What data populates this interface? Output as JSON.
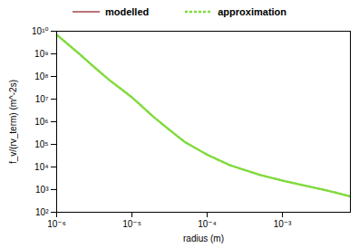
{
  "chart_data": {
    "type": "line",
    "log": true,
    "grid": false,
    "legend": "top",
    "xlabel": "radius (m)",
    "ylabel": "f_v/(rv_term) (m^-2s)",
    "x": [
      1e-06,
      2e-06,
      3e-06,
      5e-06,
      1e-05,
      2e-05,
      3e-05,
      5e-05,
      0.0001,
      0.0002,
      0.0005,
      0.001,
      0.002,
      0.004,
      0.008
    ],
    "series": [
      {
        "name": "modelled",
        "color": "#8b1a1a",
        "line_style": "solid",
        "values": [
          7000000000.0,
          1000000000.0,
          300000000.0,
          70000000.0,
          12000000.0,
          1500000.0,
          500000.0,
          130000.0,
          35000.0,
          12000.0,
          4500.0,
          2500.0,
          1500.0,
          900.0,
          500.0
        ]
      },
      {
        "name": "approximation",
        "color": "#7fdc3c",
        "line_style": "dashed",
        "values": [
          7000000000.0,
          1000000000.0,
          300000000.0,
          70000000.0,
          12000000.0,
          1500000.0,
          500000.0,
          130000.0,
          35000.0,
          12000.0,
          4500.0,
          2500.0,
          1500.0,
          900.0,
          500.0
        ]
      }
    ],
    "xlim": [
      1e-06,
      0.008
    ],
    "ylim": [
      100.0,
      10000000000.0
    ],
    "xticks": [
      {
        "value": 1e-06,
        "label": "10⁻⁶"
      },
      {
        "value": 1e-05,
        "label": "10⁻⁵"
      },
      {
        "value": 0.0001,
        "label": "10⁻⁴"
      },
      {
        "value": 0.001,
        "label": "10⁻³"
      }
    ],
    "yticks": [
      {
        "value": 100.0,
        "label": "10²"
      },
      {
        "value": 1000.0,
        "label": "10³"
      },
      {
        "value": 10000.0,
        "label": "10⁴"
      },
      {
        "value": 100000.0,
        "label": "10⁵"
      },
      {
        "value": 1000000.0,
        "label": "10⁶"
      },
      {
        "value": 10000000.0,
        "label": "10⁷"
      },
      {
        "value": 100000000.0,
        "label": "10⁸"
      },
      {
        "value": 1000000000.0,
        "label": "10⁹"
      },
      {
        "value": 10000000000.0,
        "label": "10¹⁰"
      }
    ]
  }
}
